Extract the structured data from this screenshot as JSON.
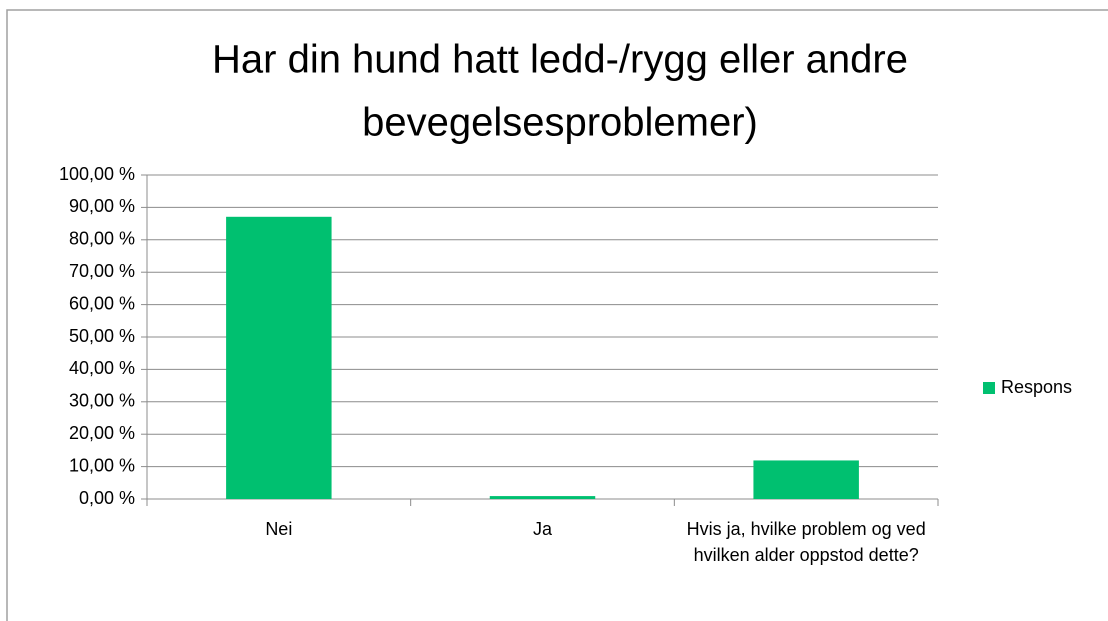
{
  "chart_data": {
    "type": "bar",
    "title": [
      "Har din hund hatt ledd-/rygg eller andre",
      "bevegelsesproblemer)"
    ],
    "categories": [
      "Nei",
      "Ja",
      "Hvis ja, hvilke problem og ved hvilken alder oppstod dette?"
    ],
    "series": [
      {
        "name": "Respons",
        "color": "#00c070",
        "values": [
          87.1,
          0.9,
          11.9
        ]
      }
    ],
    "ylim": [
      0,
      100
    ],
    "yticks": [
      {
        "value": 0,
        "label": "0,00 %"
      },
      {
        "value": 10,
        "label": "10,00 %"
      },
      {
        "value": 20,
        "label": "20,00 %"
      },
      {
        "value": 30,
        "label": "30,00 %"
      },
      {
        "value": 40,
        "label": "40,00 %"
      },
      {
        "value": 50,
        "label": "50,00 %"
      },
      {
        "value": 60,
        "label": "60,00 %"
      },
      {
        "value": 70,
        "label": "70,00 %"
      },
      {
        "value": 80,
        "label": "80,00 %"
      },
      {
        "value": 90,
        "label": "90,00 %"
      },
      {
        "value": 100,
        "label": "100,00 %"
      }
    ],
    "grid": true,
    "legend": "right"
  }
}
